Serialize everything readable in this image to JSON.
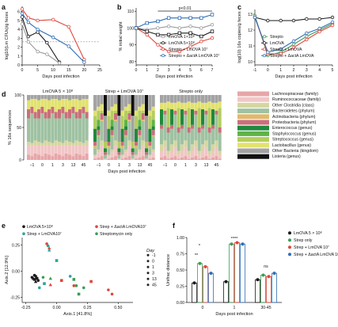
{
  "panels": {
    "a": {
      "label": "a",
      "xlabel": "Days post infection",
      "ylabel": "log10(Lm CFUs)/g feces",
      "x_ticks": [
        "0",
        "5",
        "10",
        "15",
        "20",
        "25"
      ],
      "y_ticks": [
        "0",
        "1",
        "2",
        "3",
        "4",
        "5",
        "6"
      ]
    },
    "b": {
      "label": "b",
      "xlabel": "Days post infection",
      "ylabel": "% initial weight",
      "x_ticks": [
        "0",
        "1",
        "2",
        "3",
        "4",
        "5",
        "6",
        "7"
      ],
      "y_ticks": [
        "80",
        "90",
        "100",
        "110"
      ],
      "annotation": "p<0.01",
      "legend": [
        "LmOVA 1×10⁸",
        "LmOVA 5×10⁸",
        "Strepto + LmOVA 10⁷",
        "Strepto + ΔactA LmOVA 10⁷"
      ]
    },
    "c": {
      "label": "c",
      "xlabel": "Days post infection",
      "ylabel": "log(10) 16s copies/g feces",
      "x_ticks": [
        "-1",
        "0",
        "1",
        "2",
        "3",
        "4",
        "5"
      ],
      "y_ticks": [
        "10",
        "11",
        "12",
        "13"
      ],
      "legend": [
        "Strepto",
        "LmOVA",
        "Strepto + LmOVA",
        "Strepto + ΔactA LmOVA"
      ]
    },
    "d": {
      "label": "d",
      "xlabel": "Days post infection",
      "ylabel": "% 16s sequences",
      "y_ticks": [
        "0",
        "50",
        "100"
      ],
      "group_titles": [
        "LmOVA 5 × 10⁸",
        "Strep + LmOVA 10⁷",
        "Strepto only"
      ],
      "group_x_ticks": [
        "−1",
        "0",
        "1",
        "3",
        "13",
        "45"
      ],
      "legend": [
        "Lachnospiraceae (family)",
        "Ruminococcaceae (family)",
        "Other Clostridia (class)",
        "Bacteroidetes (phylum)",
        "Actinobacteria (phylum)",
        "Proteobacteria (phylum)",
        "Enterococcus (genus)",
        "Staphylococcus (genus)",
        "Streptococcus (genus)",
        "Lactobacillus (genus)",
        "Other Bacteria (kingdom)",
        "Listeria (genus)"
      ]
    },
    "e": {
      "label": "e",
      "xlabel": "Axis.1 [41.8%]",
      "ylabel": "Axis.2 [12.9%]",
      "x_ticks": [
        "-0.25",
        "0.00",
        "0.25",
        "0.50"
      ],
      "y_ticks": [
        "-0.25",
        "0.00",
        "0.25"
      ],
      "legend": [
        "LmOVA 5×10⁸",
        "Strep + LmOVA10⁷",
        "Strep + ΔactA LmOVA10⁷",
        "Streptomycin only"
      ],
      "day_title": "Day",
      "days": [
        "-1",
        "0",
        "1",
        "3",
        "13",
        "45"
      ]
    },
    "f": {
      "label": "f",
      "xlabel": "Days post infection",
      "ylabel": "Unifrac distance",
      "x_ticks": [
        "0",
        "1",
        "30-45"
      ],
      "y_ticks": [
        "0.00",
        "0.25",
        "0.50",
        "0.75",
        "1.00"
      ],
      "sig": [
        "*",
        "**",
        "****",
        "ns"
      ],
      "legend": [
        "LmOVA 5 × 10⁸",
        "Strep only",
        "Strep + LmOVA 10⁷",
        "Strep + ΔactA LmOVA 10⁷"
      ]
    }
  },
  "colors": {
    "black": "#1a1a1a",
    "grey": "#9a9a9a",
    "red": "#e0463c",
    "salmon": "#e8857a",
    "blue": "#2f6db5",
    "green": "#3c9c55",
    "teal": "#27a59a"
  },
  "chart_data": [
    {
      "type": "line",
      "panel": "a",
      "series": [
        {
          "color": "black",
          "x": [
            0,
            2,
            5,
            8,
            12
          ],
          "y": [
            5.4,
            3.2,
            3.7,
            2.5,
            0.3
          ]
        },
        {
          "color": "grey",
          "x": [
            0,
            2,
            5,
            8,
            12
          ],
          "y": [
            4.6,
            2.6,
            1.5,
            1.2,
            0.2
          ]
        },
        {
          "color": "red",
          "x": [
            0,
            2,
            5,
            10,
            15,
            20
          ],
          "y": [
            6.3,
            5.3,
            5.0,
            5.1,
            4.3,
            0.6
          ]
        },
        {
          "color": "blue",
          "x": [
            0,
            2,
            5,
            10,
            15,
            20
          ],
          "y": [
            5.8,
            4.8,
            4.0,
            3.1,
            2.1,
            0.3
          ]
        }
      ]
    },
    {
      "type": "line",
      "panel": "b",
      "series": [
        {
          "color": "grey",
          "x": [
            0,
            1,
            2,
            3,
            4,
            5,
            6,
            7
          ],
          "y": [
            100,
            99,
            100,
            101,
            100,
            101,
            100,
            102
          ]
        },
        {
          "color": "black",
          "x": [
            0,
            1,
            2,
            3,
            4,
            5,
            6,
            7
          ],
          "y": [
            100,
            98,
            96,
            96,
            97,
            97,
            95,
            98
          ]
        },
        {
          "color": "red",
          "x": [
            0,
            1,
            2,
            3,
            4,
            5,
            6,
            7
          ],
          "y": [
            100,
            96,
            90,
            86,
            86,
            89,
            92,
            94
          ]
        },
        {
          "color": "blue",
          "x": [
            0,
            1,
            2,
            3,
            4,
            5,
            6,
            7
          ],
          "y": [
            100,
            103,
            104,
            106,
            106,
            106,
            106,
            108
          ]
        }
      ]
    },
    {
      "type": "line",
      "panel": "c",
      "series": [
        {
          "color": "green",
          "x": [
            -1,
            0,
            1,
            2,
            3,
            4,
            5
          ],
          "y": [
            12.9,
            10.4,
            10.6,
            11.1,
            11.6,
            12.0,
            12.4
          ]
        },
        {
          "color": "black",
          "x": [
            -1,
            0,
            1,
            2,
            3,
            4,
            5
          ],
          "y": [
            12.8,
            12.6,
            12.6,
            12.6,
            12.7,
            12.7,
            12.8
          ]
        },
        {
          "color": "red",
          "x": [
            -1,
            0,
            1,
            2,
            3,
            4,
            5
          ],
          "y": [
            12.8,
            10.5,
            10.5,
            10.9,
            11.4,
            11.9,
            12.3
          ]
        },
        {
          "color": "blue",
          "x": [
            -1,
            0,
            1,
            2,
            3,
            4,
            5
          ],
          "y": [
            12.8,
            10.6,
            10.8,
            11.3,
            11.8,
            12.1,
            12.5
          ]
        }
      ]
    },
    {
      "type": "bar",
      "panel": "d",
      "stacked": true,
      "colors": [
        "#e7a6a8",
        "#f1c6c6",
        "#d6d6a0",
        "#9fc2a2",
        "#e2b870",
        "#c96f7a",
        "#1f8a3c",
        "#60b346",
        "#b4cd5f",
        "#e2e26e",
        "#a3a3a3",
        "#111111"
      ],
      "groups": [
        {
          "n": 18,
          "pattern": [
            [
              8,
              14,
              6,
              36,
              0,
              14,
              0,
              0,
              0,
              14,
              8,
              0
            ],
            [
              6,
              16,
              4,
              46,
              0,
              10,
              0,
              0,
              0,
              12,
              6,
              0
            ],
            [
              10,
              12,
              8,
              34,
              0,
              10,
              0,
              0,
              0,
              20,
              6,
              0
            ]
          ]
        },
        {
          "n": 18,
          "pattern": [
            [
              2,
              4,
              2,
              10,
              4,
              6,
              20,
              0,
              20,
              8,
              24,
              0
            ],
            [
              4,
              8,
              4,
              20,
              2,
              8,
              6,
              10,
              14,
              6,
              18,
              0
            ],
            [
              6,
              16,
              8,
              30,
              2,
              10,
              0,
              0,
              4,
              10,
              14,
              0
            ],
            [
              0,
              2,
              0,
              6,
              0,
              4,
              6,
              0,
              10,
              0,
              40,
              32
            ]
          ]
        },
        {
          "n": 18,
          "pattern": [
            [
              4,
              10,
              10,
              24,
              0,
              6,
              24,
              0,
              0,
              10,
              12,
              0
            ],
            [
              6,
              14,
              10,
              40,
              0,
              6,
              0,
              0,
              0,
              12,
              12,
              0
            ],
            [
              2,
              6,
              6,
              28,
              0,
              8,
              0,
              0,
              30,
              10,
              10,
              0
            ]
          ]
        }
      ]
    },
    {
      "type": "scatter",
      "panel": "e",
      "series": [
        {
          "color": "black",
          "x": [
            -0.2,
            -0.19,
            -0.18,
            -0.17,
            -0.16,
            -0.15,
            -0.18,
            -0.17
          ],
          "y": [
            -0.06,
            -0.07,
            -0.08,
            -0.05,
            -0.07,
            -0.09,
            -0.04,
            -0.1
          ]
        },
        {
          "color": "red",
          "x": [
            -0.08,
            -0.06,
            0.04,
            0.14,
            0.28,
            0.42,
            0.45,
            -0.05
          ],
          "y": [
            0.26,
            0.22,
            -0.09,
            -0.14,
            -0.1,
            -0.18,
            -0.22,
            -0.13
          ]
        },
        {
          "color": "teal",
          "x": [
            -0.07,
            -0.06,
            0.0,
            0.11,
            -0.1,
            -0.14
          ],
          "y": [
            0.24,
            0.2,
            0.1,
            -0.05,
            -0.12,
            -0.16
          ]
        },
        {
          "color": "green",
          "x": [
            -0.11,
            -0.05,
            0.14,
            0.16,
            0.18,
            0.22
          ],
          "y": [
            -0.06,
            -0.07,
            -0.08,
            -0.14,
            -0.22,
            -0.16
          ]
        }
      ]
    },
    {
      "type": "bar",
      "panel": "f",
      "categories": [
        "0",
        "1",
        "30-45"
      ],
      "series": [
        {
          "color": "black",
          "values": [
            0.3,
            0.32,
            0.35
          ]
        },
        {
          "color": "green",
          "values": [
            0.6,
            0.9,
            0.42
          ]
        },
        {
          "color": "red",
          "values": [
            0.55,
            0.92,
            0.4
          ]
        },
        {
          "color": "blue",
          "values": [
            0.45,
            0.9,
            0.45
          ]
        }
      ],
      "ylim": [
        0,
        1.0
      ]
    }
  ]
}
